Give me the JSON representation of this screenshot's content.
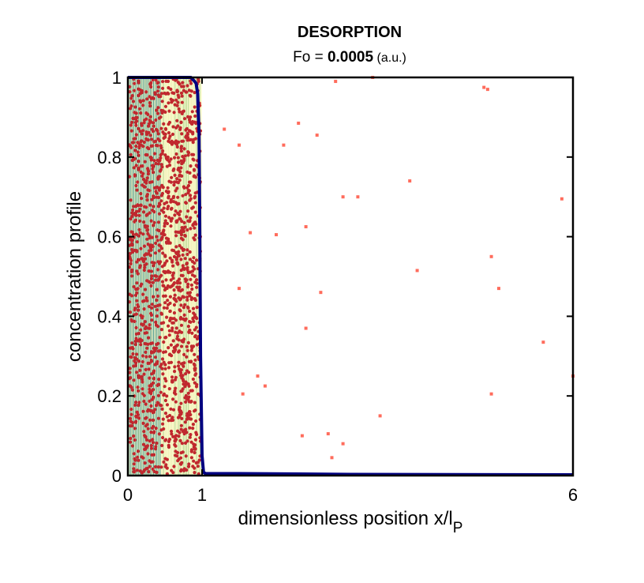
{
  "chart_data": {
    "type": "line",
    "title": "DESORPTION",
    "subtitle": {
      "prefix": "Fo = ",
      "value": "0.0005",
      "unit": " (a.u.)"
    },
    "xlabel": {
      "main": "dimensionless position x/l",
      "subscript": "P"
    },
    "ylabel": "concentration profile",
    "xlim": [
      0,
      6
    ],
    "ylim": [
      0,
      1
    ],
    "x_ticks": [
      {
        "value": 0,
        "label": "0"
      },
      {
        "value": 1,
        "label": "1"
      },
      {
        "value": 6,
        "label": "6"
      }
    ],
    "y_ticks": [
      {
        "value": 0,
        "label": "0"
      },
      {
        "value": 0.2,
        "label": "0.2"
      },
      {
        "value": 0.4,
        "label": "0.4"
      },
      {
        "value": 0.6,
        "label": "0.6"
      },
      {
        "value": 0.8,
        "label": "0.8"
      },
      {
        "value": 1,
        "label": "1"
      }
    ],
    "grid": false,
    "series": [
      {
        "role": "concentration-profile",
        "color": "#000080",
        "x": [
          0,
          0.5,
          0.85,
          0.9,
          0.92,
          0.94,
          0.96,
          0.97,
          0.98,
          1.0,
          1.02,
          1.05,
          1.5,
          3.0,
          6.0
        ],
        "y": [
          1.0,
          1.0,
          1.0,
          0.99,
          0.985,
          0.96,
          0.86,
          0.6,
          0.3,
          0.05,
          0.008,
          0.005,
          0.005,
          0.003,
          0.002
        ]
      }
    ],
    "particles_outside": {
      "color": "#ff6c5c",
      "x": [
        2.8,
        3.3,
        4.8,
        4.85,
        2.1,
        2.55,
        2.3,
        1.3,
        1.5,
        3.8,
        2.9,
        3.1,
        5.85,
        1.65,
        2.0,
        2.4,
        4.9,
        3.9,
        1.5,
        2.6,
        5.0,
        2.4,
        1.75,
        5.6,
        1.85,
        1.55,
        4.9,
        3.4,
        2.35,
        2.7,
        2.75,
        2.9,
        6.0
      ],
      "y": [
        0.99,
        1.0,
        0.975,
        0.97,
        0.83,
        0.855,
        0.885,
        0.87,
        0.83,
        0.74,
        0.7,
        0.7,
        0.695,
        0.61,
        0.605,
        0.625,
        0.55,
        0.515,
        0.47,
        0.46,
        0.47,
        0.37,
        0.25,
        0.335,
        0.225,
        0.205,
        0.205,
        0.15,
        0.1,
        0.105,
        0.045,
        0.08,
        0.25
      ]
    },
    "particle_region": {
      "x_max": 1.0,
      "particle_color": "#c0282e",
      "stripe_colors": [
        "#4e9a8c",
        "#b8d88e",
        "#eef0b0",
        "#6fa882"
      ]
    },
    "background_fill": "#fdfbd8",
    "axis_color": "#000000"
  }
}
